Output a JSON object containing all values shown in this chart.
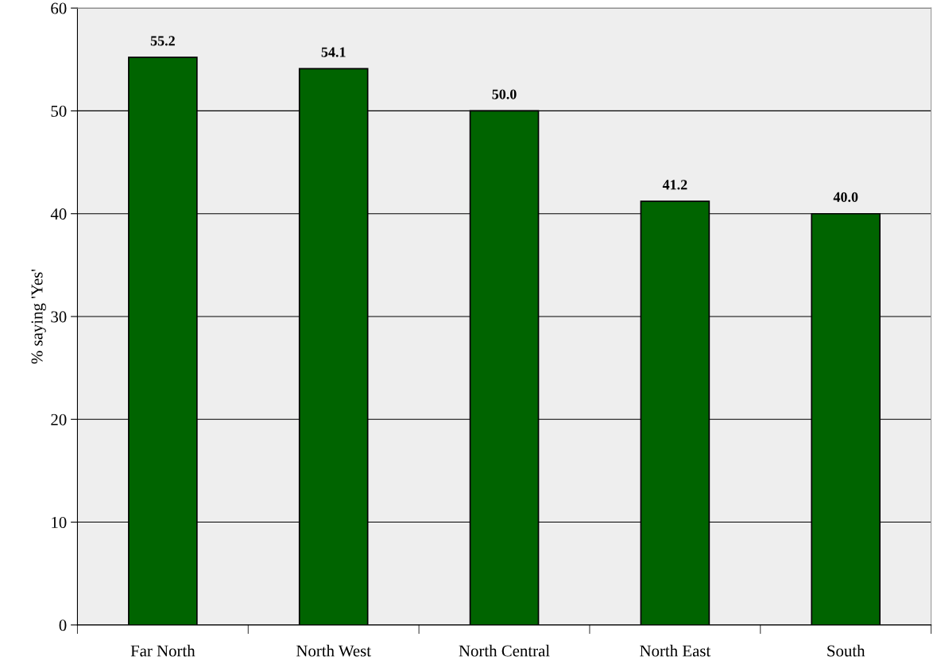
{
  "chart_data": {
    "type": "bar",
    "ylabel": "% saying 'Yes'",
    "categories": [
      "Far North",
      "North West",
      "North Central",
      "North East",
      "South"
    ],
    "values": [
      55.2,
      54.1,
      50.0,
      41.2,
      40.0
    ],
    "value_labels": [
      "55.2",
      "54.1",
      "50.0",
      "41.2",
      "40.0"
    ],
    "color": "#006400",
    "ylim": [
      0,
      60
    ],
    "yticks": [
      0,
      10,
      20,
      30,
      40,
      50,
      60
    ],
    "grid": "y",
    "legend": false
  }
}
